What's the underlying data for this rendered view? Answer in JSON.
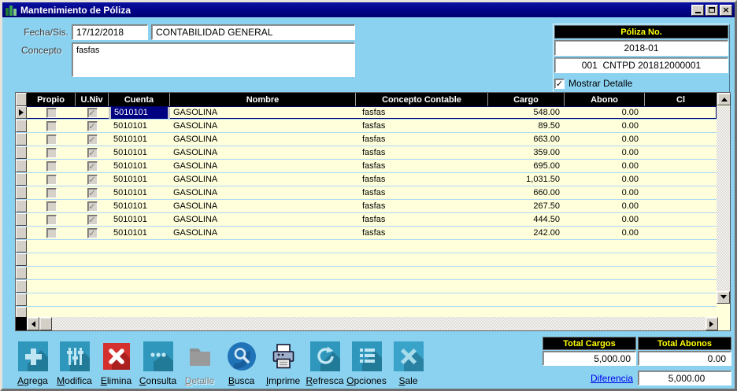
{
  "window": {
    "title": "Mantenimiento de Póliza"
  },
  "form": {
    "fecha_label": "Fecha/Sis.",
    "fecha_value": "17/12/2018",
    "sistema_value": "CONTABILIDAD GENERAL",
    "concepto_label": "Concepto",
    "concepto_value": "fasfas",
    "mostrar_detalle_label": "Mostrar Detalle",
    "mostrar_detalle_checked": true
  },
  "poliza": {
    "header": "Póliza No.",
    "periodo": "2018-01",
    "numero": "001  CNTPD 201812000001"
  },
  "grid": {
    "columns": [
      "",
      "Propio",
      "U.Niv",
      "Cuenta",
      "Nombre",
      "Concepto Contable",
      "Cargo",
      "Abono",
      "Cl"
    ],
    "selected_row": 0,
    "rows": [
      {
        "propio": false,
        "univ": true,
        "cuenta": "5010101",
        "nombre": "GASOLINA",
        "concepto": "fasfas",
        "cargo": "548.00",
        "abono": "0.00",
        "cl": ""
      },
      {
        "propio": false,
        "univ": true,
        "cuenta": "5010101",
        "nombre": "GASOLINA",
        "concepto": "fasfas",
        "cargo": "89.50",
        "abono": "0.00",
        "cl": ""
      },
      {
        "propio": false,
        "univ": true,
        "cuenta": "5010101",
        "nombre": "GASOLINA",
        "concepto": "fasfas",
        "cargo": "663.00",
        "abono": "0.00",
        "cl": ""
      },
      {
        "propio": false,
        "univ": true,
        "cuenta": "5010101",
        "nombre": "GASOLINA",
        "concepto": "fasfas",
        "cargo": "359.00",
        "abono": "0.00",
        "cl": ""
      },
      {
        "propio": false,
        "univ": true,
        "cuenta": "5010101",
        "nombre": "GASOLINA",
        "concepto": "fasfas",
        "cargo": "695.00",
        "abono": "0.00",
        "cl": ""
      },
      {
        "propio": false,
        "univ": true,
        "cuenta": "5010101",
        "nombre": "GASOLINA",
        "concepto": "fasfas",
        "cargo": "1,031.50",
        "abono": "0.00",
        "cl": ""
      },
      {
        "propio": false,
        "univ": true,
        "cuenta": "5010101",
        "nombre": "GASOLINA",
        "concepto": "fasfas",
        "cargo": "660.00",
        "abono": "0.00",
        "cl": ""
      },
      {
        "propio": false,
        "univ": true,
        "cuenta": "5010101",
        "nombre": "GASOLINA",
        "concepto": "fasfas",
        "cargo": "267.50",
        "abono": "0.00",
        "cl": ""
      },
      {
        "propio": false,
        "univ": true,
        "cuenta": "5010101",
        "nombre": "GASOLINA",
        "concepto": "fasfas",
        "cargo": "444.50",
        "abono": "0.00",
        "cl": ""
      },
      {
        "propio": false,
        "univ": true,
        "cuenta": "5010101",
        "nombre": "GASOLINA",
        "concepto": "fasfas",
        "cargo": "242.00",
        "abono": "0.00",
        "cl": ""
      }
    ]
  },
  "toolbar": {
    "buttons": [
      {
        "label": "Agrega",
        "icon": "plus-icon",
        "disabled": false
      },
      {
        "label": "Modifica",
        "icon": "sliders-icon",
        "disabled": false
      },
      {
        "label": "Elimina",
        "icon": "delete-x-icon",
        "disabled": false
      },
      {
        "label": "Consulta",
        "icon": "dots-icon",
        "disabled": false
      },
      {
        "label": "Detalle",
        "icon": "folder-icon",
        "disabled": true
      },
      {
        "label": "Busca",
        "icon": "magnifier-icon",
        "disabled": false
      },
      {
        "label": "Imprime",
        "icon": "printer-icon",
        "disabled": false
      },
      {
        "label": "Refresca",
        "icon": "refresh-icon",
        "disabled": false
      },
      {
        "label": "Opciones",
        "icon": "list-icon",
        "disabled": false
      },
      {
        "label": "Sale",
        "icon": "exit-x-icon",
        "disabled": false
      }
    ]
  },
  "totals": {
    "cargos_label": "Total Cargos",
    "cargos_value": "5,000.00",
    "abonos_label": "Total Abonos",
    "abonos_value": "0.00",
    "diferencia_label": "Diferencia",
    "diferencia_value": "5,000.00"
  },
  "colors": {
    "titlebar": "#020386",
    "panel_bg": "#8BD2F0",
    "grid_header_bg": "#000000",
    "grid_header_fg": "#FFFFFF",
    "row_bg": "#FFFFDB",
    "row_separator": "#ABD9F6",
    "selected_cell_bg": "#000080",
    "black_header_fg": "#FFFF00",
    "link": "#0000EE",
    "button_teal": "#2F97BC",
    "button_red": "#D4302E",
    "busca_blue": "#2173B8"
  }
}
